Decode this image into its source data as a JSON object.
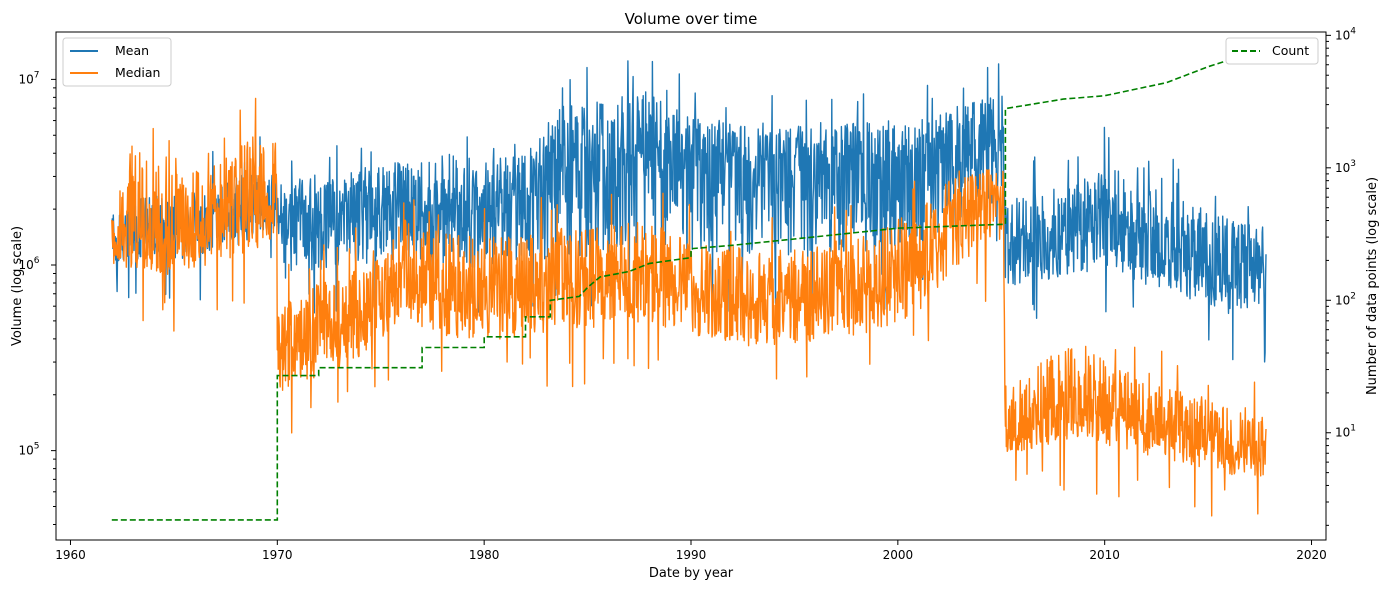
{
  "chart_data": {
    "type": "line",
    "title": "Volume over time",
    "xlabel": "Date by year",
    "ylabel": "Volume (log scale)",
    "y2label": "Number of data points (log scale)",
    "x_ticks": [
      1960,
      1970,
      1980,
      1990,
      2000,
      2010,
      2020
    ],
    "xlim": [
      1959.3,
      2020.7
    ],
    "ylim": [
      33000,
      18000000
    ],
    "y_scale": "log",
    "y_ticks": [
      {
        "base": "10",
        "exp": "5",
        "value": 100000
      },
      {
        "base": "10",
        "exp": "6",
        "value": 1000000
      },
      {
        "base": "10",
        "exp": "7",
        "value": 10000000
      }
    ],
    "y2lim": [
      1.55,
      10600
    ],
    "y2_scale": "log",
    "y2_ticks": [
      {
        "base": "10",
        "exp": "1",
        "value": 10
      },
      {
        "base": "10",
        "exp": "2",
        "value": 100
      },
      {
        "base": "10",
        "exp": "3",
        "value": 1000
      },
      {
        "base": "10",
        "exp": "4",
        "value": 10000
      }
    ],
    "grid": false,
    "legend_left": {
      "placement": "top-left",
      "entries": [
        "Mean",
        "Median"
      ]
    },
    "legend_right": {
      "placement": "top-right",
      "entries": [
        "Count"
      ]
    },
    "colors": {
      "mean": "#1f77b4",
      "median": "#ff7f0e",
      "count": "#008000"
    },
    "series": [
      {
        "name": "Mean",
        "axis": "left",
        "style": "solid",
        "x": [
          1962.0,
          1963,
          1965,
          1967,
          1969,
          1969.99,
          1970.0,
          1972,
          1975,
          1978,
          1980,
          1982,
          1983.5,
          1986,
          1988,
          1990,
          1993,
          1996,
          1999,
          2001,
          2003,
          2005.1,
          2005.2,
          2007,
          2009,
          2010,
          2012,
          2014,
          2016,
          2017.8
        ],
        "y": [
          1300000,
          1400000,
          1500000,
          1700000,
          2000000,
          2100000,
          1700000,
          1900000,
          2000000,
          2200000,
          2000000,
          2300000,
          3500000,
          3600000,
          4000000,
          3500000,
          3400000,
          3300000,
          3600000,
          3800000,
          4200000,
          5200000,
          1200000,
          1300000,
          1600000,
          1900000,
          1400000,
          1100000,
          900000,
          800000
        ],
        "range_low": [
          1000000,
          1000000,
          1000000,
          1100000,
          1300000,
          1500000,
          700000,
          800000,
          900000,
          900000,
          800000,
          900000,
          900000,
          900000,
          1100000,
          1000000,
          900000,
          900000,
          1000000,
          1100000,
          1400000,
          2000000,
          700000,
          750000,
          800000,
          900000,
          700000,
          600000,
          500000,
          500000
        ],
        "range_high": [
          2100000,
          2500000,
          2600000,
          3000000,
          3500000,
          3500000,
          3000000,
          3500000,
          3800000,
          4500000,
          4000000,
          4500000,
          8000000,
          9000000,
          10000000,
          7000000,
          6500000,
          6500000,
          6500000,
          7000000,
          8000000,
          9000000,
          2500000,
          2800000,
          3200000,
          4000000,
          3000000,
          2500000,
          2000000,
          1800000
        ]
      },
      {
        "name": "Median",
        "axis": "left",
        "style": "solid",
        "x": [
          1962.0,
          1963,
          1965,
          1967,
          1969,
          1969.99,
          1970.0,
          1972,
          1974,
          1976,
          1978,
          1980,
          1982,
          1984,
          1986,
          1988,
          1990,
          1993,
          1996,
          1999,
          2001,
          2003,
          2005.1,
          2005.2,
          2007,
          2009,
          2010,
          2012,
          2014,
          2016,
          2017.8
        ],
        "y": [
          1300000,
          1400000,
          1400000,
          1700000,
          2100000,
          2300000,
          350000,
          420000,
          500000,
          900000,
          700000,
          650000,
          750000,
          800000,
          850000,
          900000,
          700000,
          600000,
          650000,
          750000,
          1100000,
          2200000,
          2300000,
          120000,
          150000,
          170000,
          160000,
          130000,
          120000,
          100000,
          95000
        ],
        "range_low": [
          900000,
          900000,
          800000,
          900000,
          1100000,
          1300000,
          160000,
          220000,
          300000,
          450000,
          380000,
          350000,
          380000,
          400000,
          420000,
          430000,
          380000,
          330000,
          350000,
          380000,
          500000,
          900000,
          1200000,
          90000,
          100000,
          110000,
          100000,
          90000,
          80000,
          70000,
          65000
        ],
        "range_high": [
          2200000,
          5500000,
          3500000,
          4000000,
          6000000,
          5500000,
          700000,
          900000,
          1200000,
          2000000,
          1700000,
          1600000,
          1700000,
          1800000,
          1900000,
          1900000,
          1500000,
          1400000,
          1500000,
          1700000,
          2300000,
          3500000,
          3500000,
          250000,
          350000,
          450000,
          350000,
          260000,
          230000,
          200000,
          180000
        ]
      },
      {
        "name": "Count",
        "axis": "right",
        "style": "dashed",
        "x": [
          1962.0,
          1970.0,
          1970.0,
          1972.0,
          1972.0,
          1977.0,
          1977.0,
          1980.0,
          1980.0,
          1982.0,
          1982.0,
          1983.2,
          1983.2,
          1984.6,
          1985.0,
          1985.6,
          1987.0,
          1988.0,
          1990.0,
          1990.0,
          1992.0,
          1995.0,
          2000.0,
          2005.2,
          2005.2,
          2008.0,
          2010.0,
          2013.0,
          2015.0,
          2017.8
        ],
        "y": [
          2.2,
          2.2,
          27,
          27,
          31,
          31,
          44,
          44,
          53,
          53,
          75,
          75,
          100,
          107,
          125,
          150,
          165,
          190,
          210,
          245,
          260,
          290,
          350,
          375,
          2800,
          3300,
          3500,
          4400,
          5800,
          8000
        ]
      }
    ]
  }
}
